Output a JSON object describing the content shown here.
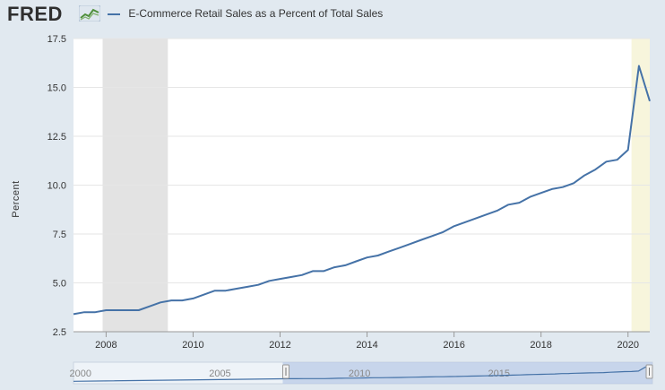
{
  "header": {
    "logo_text": "FRED",
    "legend_label": "E-Commerce Retail Sales as a Percent of Total Sales"
  },
  "colors": {
    "series": "#4572a7",
    "recession": "#e3e3e3",
    "recent_shade": "#f7f5dc",
    "navigator_fill": "#b6c7e6"
  },
  "chart_data": {
    "type": "line",
    "ylabel": "Percent",
    "xlim": [
      2007.25,
      2020.5
    ],
    "ylim": [
      2.5,
      17.5
    ],
    "yticks": [
      2.5,
      5.0,
      7.5,
      10.0,
      12.5,
      15.0,
      17.5
    ],
    "ytick_labels": [
      "2.5",
      "5.0",
      "7.5",
      "10.0",
      "12.5",
      "15.0",
      "17.5"
    ],
    "xticks": [
      2008,
      2010,
      2012,
      2014,
      2016,
      2018,
      2020
    ],
    "xtick_labels": [
      "2008",
      "2010",
      "2012",
      "2014",
      "2016",
      "2018",
      "2020"
    ],
    "grid": true,
    "shaded_periods": [
      {
        "kind": "recession",
        "start": 2007.92,
        "end": 2009.42
      },
      {
        "kind": "highlight",
        "start": 2020.08,
        "end": 2020.5
      }
    ],
    "series": [
      {
        "x": [
          2007.25,
          2007.5,
          2007.75,
          2008.0,
          2008.25,
          2008.5,
          2008.75,
          2009.0,
          2009.25,
          2009.5,
          2009.75,
          2010.0,
          2010.25,
          2010.5,
          2010.75,
          2011.0,
          2011.25,
          2011.5,
          2011.75,
          2012.0,
          2012.25,
          2012.5,
          2012.75,
          2013.0,
          2013.25,
          2013.5,
          2013.75,
          2014.0,
          2014.25,
          2014.5,
          2014.75,
          2015.0,
          2015.25,
          2015.5,
          2015.75,
          2016.0,
          2016.25,
          2016.5,
          2016.75,
          2017.0,
          2017.25,
          2017.5,
          2017.75,
          2018.0,
          2018.25,
          2018.5,
          2018.75,
          2019.0,
          2019.25,
          2019.5,
          2019.75,
          2020.0,
          2020.25,
          2020.5
        ],
        "values": [
          3.4,
          3.5,
          3.5,
          3.6,
          3.6,
          3.6,
          3.6,
          3.8,
          4.0,
          4.1,
          4.1,
          4.2,
          4.4,
          4.6,
          4.6,
          4.7,
          4.8,
          4.9,
          5.1,
          5.2,
          5.3,
          5.4,
          5.6,
          5.6,
          5.8,
          5.9,
          6.1,
          6.3,
          6.4,
          6.6,
          6.8,
          7.0,
          7.2,
          7.4,
          7.6,
          7.9,
          8.1,
          8.3,
          8.5,
          8.7,
          9.0,
          9.1,
          9.4,
          9.6,
          9.8,
          9.9,
          10.1,
          10.5,
          10.8,
          11.2,
          11.3,
          11.8,
          16.1,
          14.3
        ]
      }
    ],
    "navigator": {
      "tick_labels": [
        "2000",
        "2005",
        "2010",
        "2015"
      ],
      "tick_values": [
        2000,
        2005,
        2010,
        2015
      ],
      "range": [
        1999.75,
        2020.5
      ],
      "selection": [
        2007.25,
        2020.5
      ]
    }
  }
}
